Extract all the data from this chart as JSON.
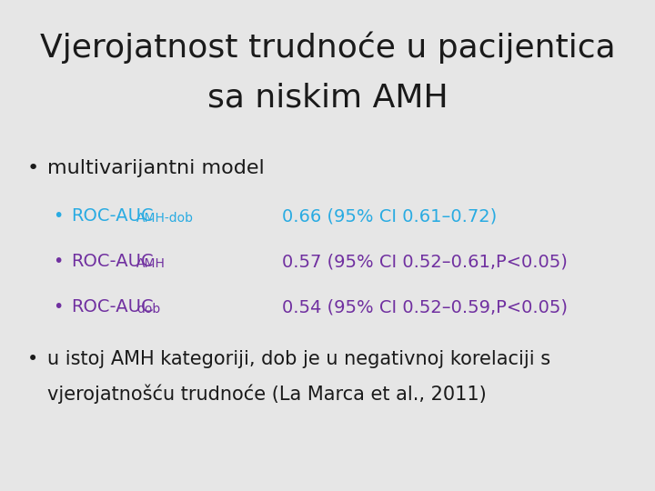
{
  "title_line1": "Vjerojatnost trudnoće u pacijentica",
  "title_line2": "sa niskim AMH",
  "title_fontsize": 26,
  "title_color": "#1a1a1a",
  "background_color": "#e6e6e6",
  "bullet1_text": "multivarijantni model",
  "bullet1_color": "#1a1a1a",
  "bullet1_fontsize": 16,
  "row1_main": "ROC-AUC",
  "row1_sub": "AMH-dob",
  "row1_value": "0.66 (95% CI 0.61–0.72)",
  "row1_color": "#29abe2",
  "row2_main": "ROC-AUC",
  "row2_sub": "AMH",
  "row2_value": "0.57 (95% CI 0.52–0.61,P<0.05)",
  "row2_color": "#7030a0",
  "row3_main": "ROC-AUC",
  "row3_sub": "dob",
  "row3_value": "0.54 (95% CI 0.52–0.59,P<0.05)",
  "row3_color": "#7030a0",
  "bullet2_line1": "u istoj AMH kategoriji, dob je u negativnoj korelaciji s",
  "bullet2_line2": "vjerojatnošću trudnoće (La Marca et al., 2011)",
  "bullet2_color": "#1a1a1a",
  "bullet2_fontsize": 15,
  "main_fontsize": 14,
  "sub_fontsize": 10,
  "value_fontsize": 14
}
